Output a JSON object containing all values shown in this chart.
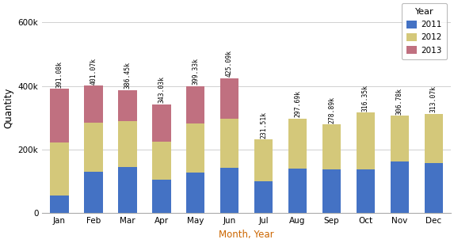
{
  "months": [
    "Jan",
    "Feb",
    "Mar",
    "Apr",
    "May",
    "Jun",
    "Jul",
    "Aug",
    "Sep",
    "Oct",
    "Nov",
    "Dec"
  ],
  "year2011": [
    55000,
    130000,
    145000,
    105000,
    128000,
    143000,
    100000,
    140000,
    138000,
    138000,
    163000,
    158000
  ],
  "year2012": [
    168000,
    155000,
    145000,
    120000,
    155000,
    155000,
    131510,
    157690,
    140890,
    178350,
    143780,
    155070
  ],
  "year2013": [
    168080,
    116070,
    96450,
    118030,
    116330,
    127090,
    0,
    0,
    0,
    0,
    0,
    0
  ],
  "totals": [
    "391.08k",
    "401.07k",
    "386.45k",
    "343.03k",
    "399.33k",
    "425.09k",
    "231.51k",
    "297.69k",
    "278.89k",
    "316.35k",
    "306.78k",
    "313.07k"
  ],
  "colors": {
    "2011": "#4472c4",
    "2012": "#d4c87a",
    "2013": "#c07080"
  },
  "ylabel": "Quantity",
  "xlabel": "Month, Year",
  "legend_title": "Year",
  "ylim": [
    0,
    660000
  ],
  "yticks": [
    0,
    200000,
    400000,
    600000
  ],
  "bg_color": "#ffffff",
  "plot_bg": "#ffffff",
  "grid_color": "#d0d0d0",
  "tick_fontsize": 7.5,
  "label_fontsize": 8.5,
  "xlabel_color": "#cc6600"
}
